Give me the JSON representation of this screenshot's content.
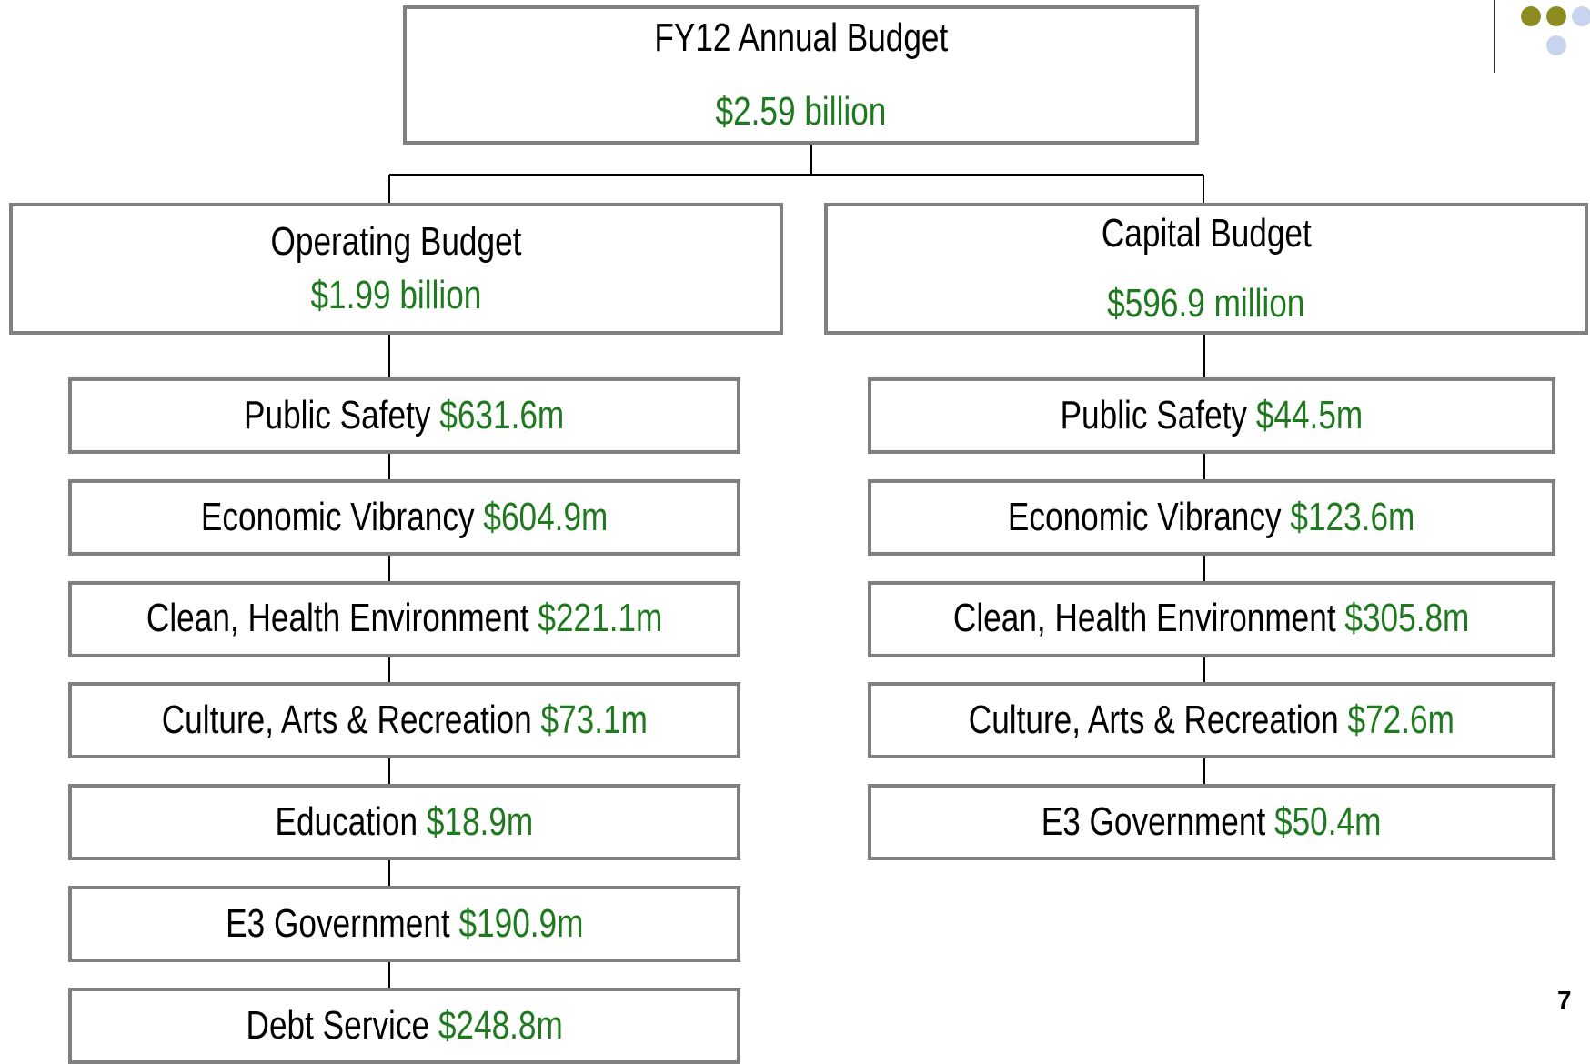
{
  "root": {
    "title": "FY12 Annual Budget",
    "amount": "$2.59 billion"
  },
  "operating": {
    "title": "Operating Budget",
    "amount": "$1.99 billion",
    "items": [
      {
        "name": "Public Safety",
        "amount": "$631.6m"
      },
      {
        "name": "Economic Vibrancy",
        "amount": "$604.9m"
      },
      {
        "name": "Clean, Health Environment",
        "amount": "$221.1m"
      },
      {
        "name": "Culture, Arts & Recreation",
        "amount": "$73.1m"
      },
      {
        "name": "Education",
        "amount": "$18.9m"
      },
      {
        "name": "E3 Government",
        "amount": "$190.9m"
      },
      {
        "name": "Debt Service",
        "amount": "$248.8m"
      }
    ]
  },
  "capital": {
    "title": "Capital Budget",
    "amount": "$596.9 million",
    "items": [
      {
        "name": "Public Safety",
        "amount": "$44.5m"
      },
      {
        "name": "Economic Vibrancy",
        "amount": "$123.6m"
      },
      {
        "name": "Clean, Health Environment",
        "amount": "$305.8m"
      },
      {
        "name": "Culture, Arts & Recreation",
        "amount": "$72.6m"
      },
      {
        "name": "E3 Government",
        "amount": "$50.4m"
      }
    ]
  },
  "page_number": "7"
}
